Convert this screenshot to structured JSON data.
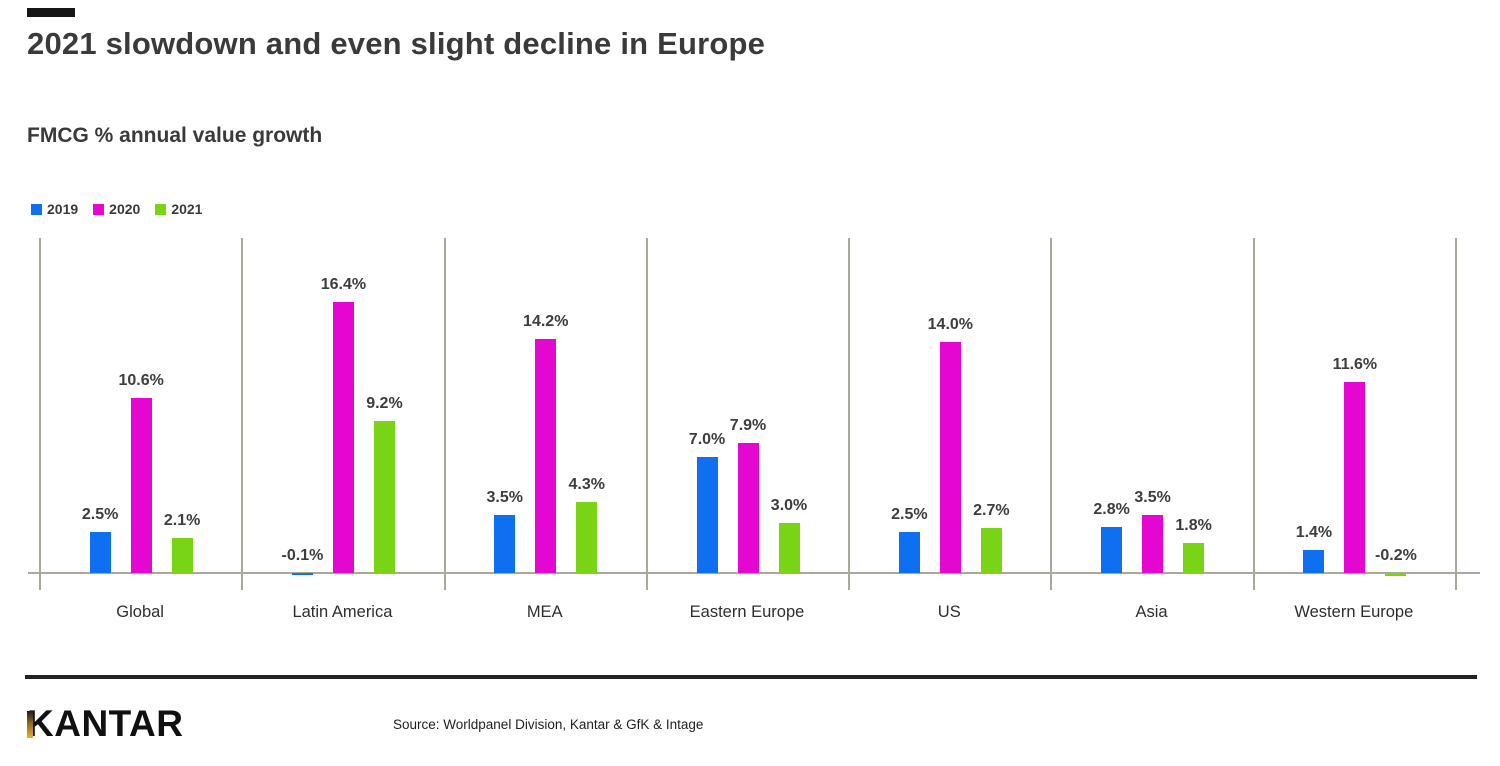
{
  "page": {
    "title": "2021 slowdown and even slight decline in Europe",
    "subtitle": "FMCG % annual value growth",
    "accent_bar_color": "#161616",
    "grid_line_color": "#aaa79d"
  },
  "legend": [
    {
      "label": "2019",
      "color": "#0e6ff0"
    },
    {
      "label": "2020",
      "color": "#e407d2"
    },
    {
      "label": "2021",
      "color": "#78d414"
    }
  ],
  "chart_data": {
    "type": "bar",
    "title": "FMCG % annual value growth",
    "categories": [
      "Global",
      "Latin America",
      "MEA",
      "Eastern Europe",
      "US",
      "Asia",
      "Western Europe"
    ],
    "series": [
      {
        "name": "2019",
        "color": "#0e6ff0",
        "values": [
          2.5,
          -0.1,
          3.5,
          7.0,
          2.5,
          2.8,
          1.4
        ],
        "labels": [
          "2.5%",
          "-0.1%",
          "3.5%",
          "7.0%",
          "2.5%",
          "2.8%",
          "1.4%"
        ]
      },
      {
        "name": "2020",
        "color": "#e407d2",
        "values": [
          10.6,
          16.4,
          14.2,
          7.9,
          14.0,
          3.5,
          11.6
        ],
        "labels": [
          "10.6%",
          "16.4%",
          "14.2%",
          "7.9%",
          "14.0%",
          "3.5%",
          "11.6%"
        ]
      },
      {
        "name": "2021",
        "color": "#78d414",
        "values": [
          2.1,
          9.2,
          4.3,
          3.0,
          2.7,
          1.8,
          -0.2
        ],
        "labels": [
          "2.1%",
          "9.2%",
          "4.3%",
          "3.0%",
          "2.7%",
          "1.8%",
          "-0.2%"
        ]
      }
    ],
    "xlabel": "",
    "ylabel": "",
    "ylim": [
      -1,
      20
    ],
    "grid": "vertical-category-separators",
    "legend_position": "top-left",
    "value_labels_shown": true
  },
  "footer": {
    "logo_text": "KANTAR",
    "source": "Source: Worldpanel Division, Kantar & GfK & Intage"
  }
}
